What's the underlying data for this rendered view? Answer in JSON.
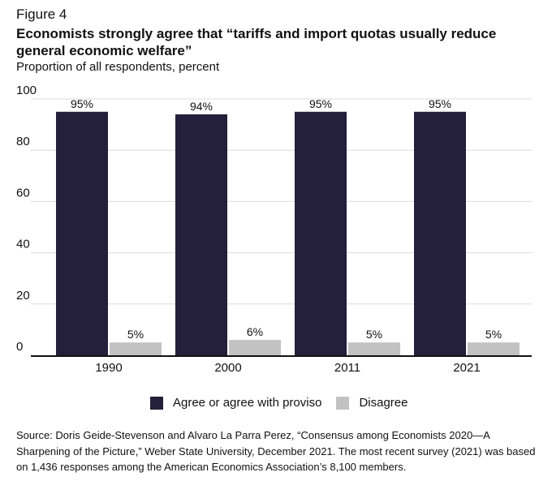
{
  "figure_label": "Figure 4",
  "chart_data": {
    "type": "bar",
    "title": "Economists strongly agree that “tariffs and import quotas usually reduce general economic welfare”",
    "subtitle": "Proportion of all respondents, percent",
    "categories": [
      "1990",
      "2000",
      "2011",
      "2021"
    ],
    "series": [
      {
        "name": "Agree or agree with proviso",
        "values": [
          95,
          94,
          95,
          95
        ],
        "labels": [
          "95%",
          "94%",
          "95%",
          "95%"
        ],
        "color": "#241f3a"
      },
      {
        "name": "Disagree",
        "values": [
          5,
          6,
          5,
          5
        ],
        "labels": [
          "5%",
          "6%",
          "5%",
          "5%"
        ],
        "color": "#c3c2c2"
      }
    ],
    "ylim": [
      0,
      100
    ],
    "yticks": [
      "0",
      "20",
      "40",
      "60",
      "80",
      "100"
    ],
    "grid": true,
    "legend": "bottom"
  },
  "source": "Source: Doris Geide-Stevenson and Alvaro La Parra Perez, “Consensus among Economists 2020—A Sharpening of the Picture,” Weber State University, December 2021. The most recent survey (2021) was based on 1,436 responses among the American Economics Association’s 8,100 members."
}
